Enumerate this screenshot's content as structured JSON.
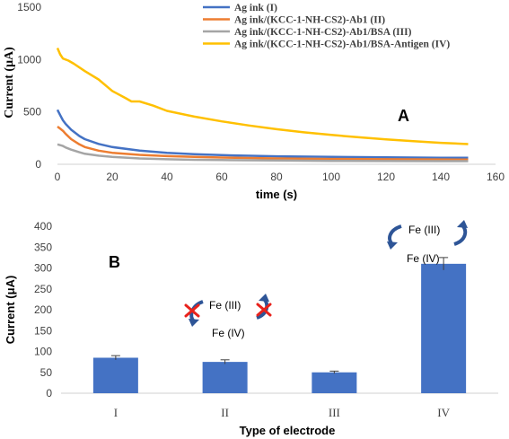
{
  "chart_data": [
    {
      "panel_label": "A",
      "type": "line",
      "xlabel": "time (s)",
      "ylabel": "Current (μA)",
      "xlim": [
        0,
        160
      ],
      "ylim": [
        0,
        1500
      ],
      "xticks": [
        "0",
        "20",
        "40",
        "60",
        "80",
        "100",
        "120",
        "140",
        "160"
      ],
      "yticks": [
        "0",
        "500",
        "1000",
        "1500"
      ],
      "grid": false,
      "legend_position": "top-right",
      "series": [
        {
          "name": "Ag ink (I)",
          "color": "#4472C4",
          "points": [
            [
              0,
              520
            ],
            [
              1,
              470
            ],
            [
              2,
              420
            ],
            [
              3,
              385
            ],
            [
              5,
              330
            ],
            [
              8,
              270
            ],
            [
              10,
              240
            ],
            [
              15,
              195
            ],
            [
              20,
              165
            ],
            [
              30,
              130
            ],
            [
              40,
              110
            ],
            [
              50,
              96
            ],
            [
              60,
              87
            ],
            [
              80,
              76
            ],
            [
              100,
              70
            ],
            [
              120,
              66
            ],
            [
              140,
              63
            ],
            [
              150,
              62
            ]
          ]
        },
        {
          "name": "Ag ink/(KCC-1-NH-CS2)-Ab1 (II)",
          "color": "#ED7D31",
          "points": [
            [
              0,
              360
            ],
            [
              1,
              340
            ],
            [
              2,
              320
            ],
            [
              3,
              290
            ],
            [
              5,
              240
            ],
            [
              8,
              190
            ],
            [
              10,
              165
            ],
            [
              15,
              130
            ],
            [
              20,
              110
            ],
            [
              30,
              90
            ],
            [
              40,
              78
            ],
            [
              50,
              70
            ],
            [
              60,
              64
            ],
            [
              80,
              56
            ],
            [
              100,
              51
            ],
            [
              120,
              48
            ],
            [
              140,
              46
            ],
            [
              150,
              45
            ]
          ]
        },
        {
          "name": "Ag ink/(KCC-1-NH-CS2)-Ab1/BSA (III)",
          "color": "#A5A5A5",
          "points": [
            [
              0,
              190
            ],
            [
              2,
              175
            ],
            [
              3,
              160
            ],
            [
              5,
              140
            ],
            [
              8,
              115
            ],
            [
              10,
              100
            ],
            [
              15,
              82
            ],
            [
              20,
              70
            ],
            [
              30,
              56
            ],
            [
              40,
              48
            ],
            [
              50,
              43
            ],
            [
              60,
              40
            ],
            [
              80,
              36
            ],
            [
              100,
              33
            ],
            [
              120,
              31
            ],
            [
              140,
              30
            ],
            [
              150,
              30
            ]
          ]
        },
        {
          "name": "Ag ink/(KCC-1-NH-CS2)-Ab1/BSA-Antigen (IV)",
          "color": "#FFC000",
          "points": [
            [
              0,
              1110
            ],
            [
              1,
              1050
            ],
            [
              2,
              1010
            ],
            [
              4,
              990
            ],
            [
              6,
              960
            ],
            [
              10,
              890
            ],
            [
              15,
              810
            ],
            [
              20,
              700
            ],
            [
              25,
              630
            ],
            [
              27,
              600
            ],
            [
              30,
              600
            ],
            [
              35,
              560
            ],
            [
              40,
              510
            ],
            [
              50,
              455
            ],
            [
              60,
              410
            ],
            [
              70,
              370
            ],
            [
              80,
              335
            ],
            [
              90,
              305
            ],
            [
              100,
              280
            ],
            [
              110,
              258
            ],
            [
              120,
              238
            ],
            [
              130,
              220
            ],
            [
              140,
              205
            ],
            [
              150,
              193
            ]
          ]
        }
      ]
    },
    {
      "panel_label": "B",
      "type": "bar",
      "xlabel": "Type of electrode",
      "ylabel": "Current (μA)",
      "ylim": [
        0,
        400
      ],
      "yticks": [
        "0",
        "50",
        "100",
        "150",
        "200",
        "250",
        "300",
        "350",
        "400"
      ],
      "categories": [
        "I",
        "II",
        "III",
        "IV"
      ],
      "values": [
        85,
        75,
        50,
        310
      ],
      "errors": [
        5,
        5,
        3,
        15
      ],
      "bar_color": "#4472C4",
      "annotations": {
        "blocked_top": "Fe (III)",
        "blocked_bottom": "Fe (IV)",
        "cycle_top": "Fe (III)",
        "cycle_bottom": "Fe (IV)"
      }
    }
  ]
}
